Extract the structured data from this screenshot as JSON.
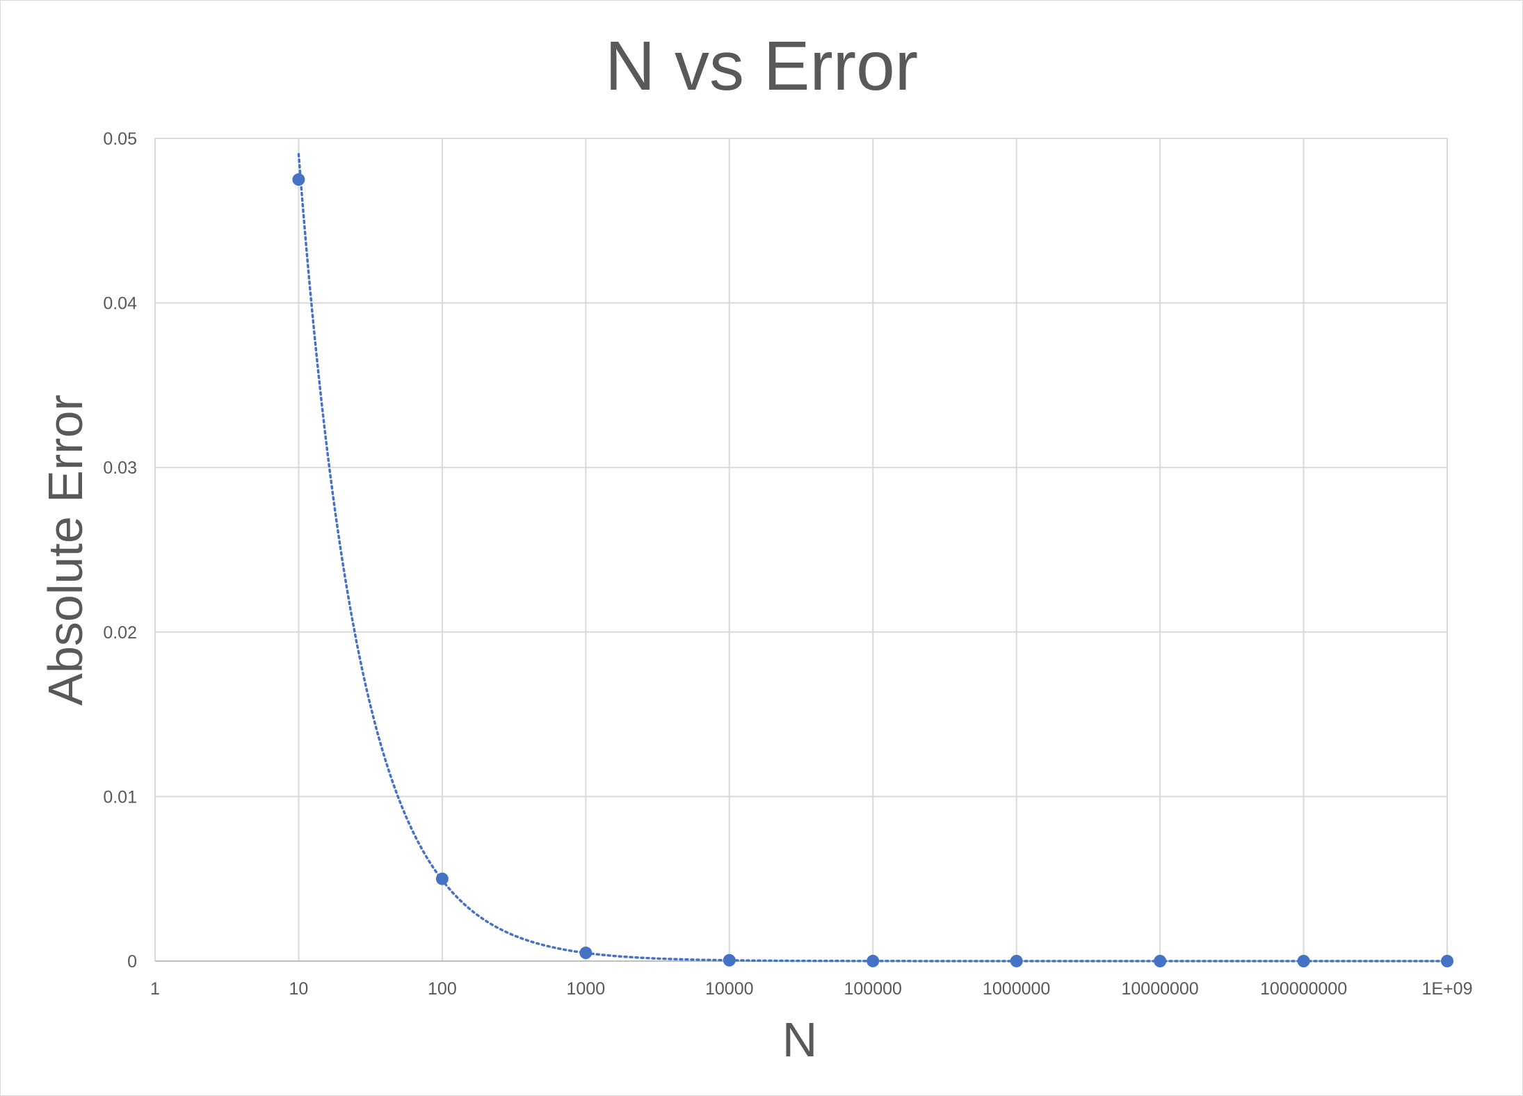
{
  "chart_data": {
    "type": "scatter",
    "title": "N vs Error",
    "xlabel": "N",
    "ylabel": "Absolute Error",
    "x_scale": "log",
    "xlim": [
      1,
      1000000000
    ],
    "ylim": [
      0,
      0.05
    ],
    "x_tick_labels": [
      "1",
      "10",
      "100",
      "1000",
      "10000",
      "100000",
      "1000000",
      "10000000",
      "100000000",
      "1E+09"
    ],
    "y_tick_labels": [
      "0",
      "0.01",
      "0.02",
      "0.03",
      "0.04",
      "0.05"
    ],
    "y_ticks": [
      0,
      0.01,
      0.02,
      0.03,
      0.04,
      0.05
    ],
    "series": [
      {
        "x": [
          10,
          100,
          1000,
          10000,
          100000,
          1000000,
          10000000,
          100000000,
          1000000000
        ],
        "y": [
          0.0475,
          0.005,
          0.0005,
          5e-05,
          5e-06,
          5e-07,
          5e-08,
          5e-09,
          5e-10
        ]
      }
    ],
    "trendline": {
      "style": "dotted",
      "x_start": 10
    },
    "grid": true,
    "legend": "none",
    "colors": {
      "marker": "#4472c4",
      "grid": "#d9d9d9",
      "text": "#595959"
    }
  }
}
